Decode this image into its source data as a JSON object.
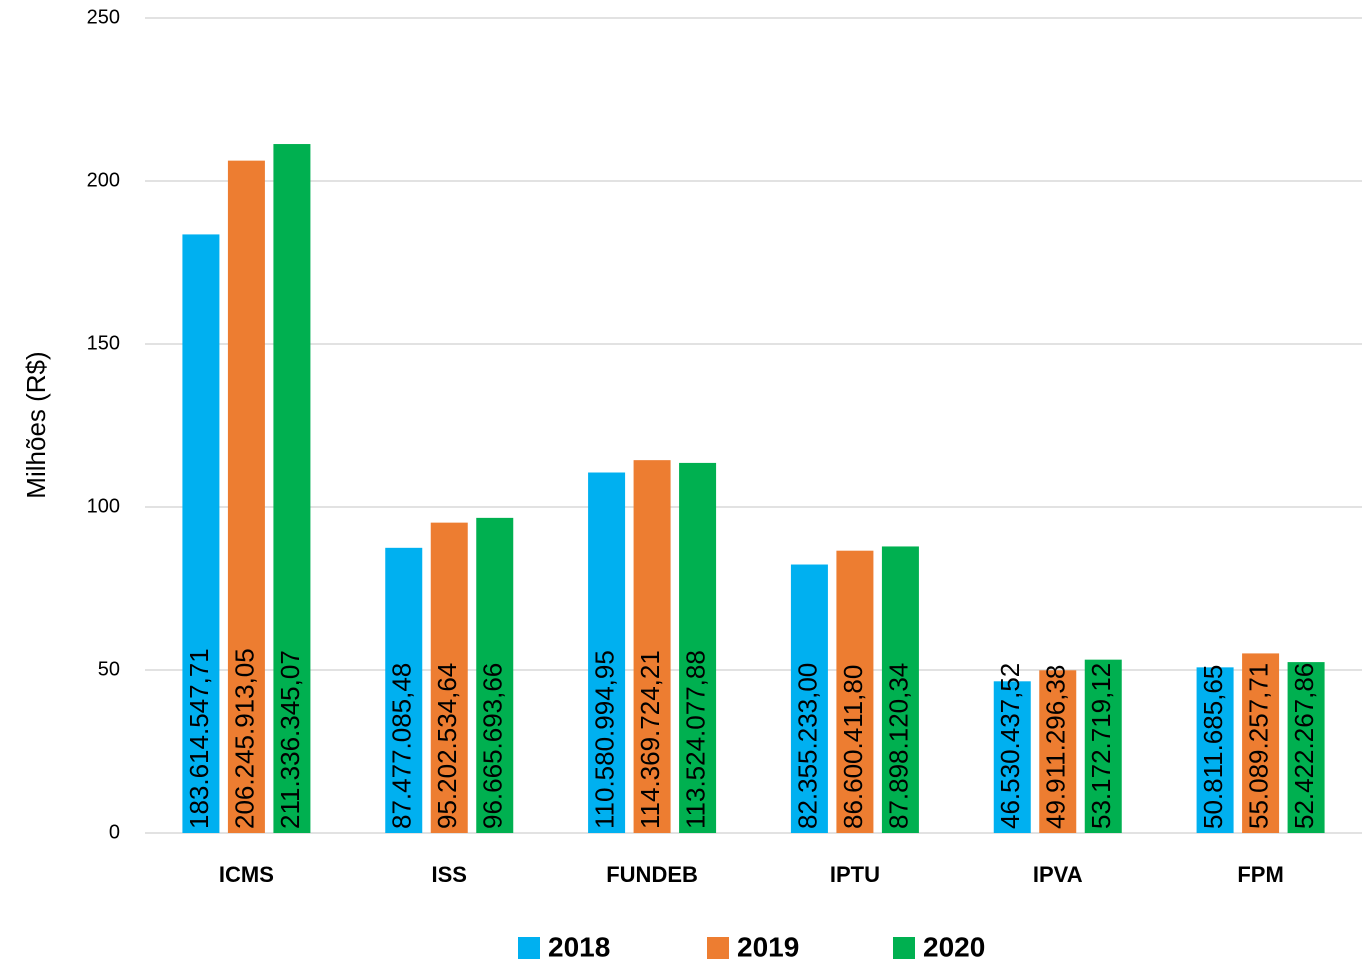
{
  "chart_data": {
    "type": "bar",
    "y_label": "Milhões (R$)",
    "categories": [
      "ICMS",
      "ISS",
      "FUNDEB",
      "IPTU",
      "IPVA",
      "FPM"
    ],
    "series": [
      {
        "name": "2018",
        "color": "#00b0f0",
        "values": [
          183.61454771,
          87.47708548,
          110.58099495,
          82.355233,
          46.53043752,
          50.81168565
        ],
        "value_labels": [
          "183.614.547,71",
          "87.477.085,48",
          "110.580.994,95",
          "82.355.233,00",
          "46.530.437,52",
          "50.811.685,65"
        ]
      },
      {
        "name": "2019",
        "color": "#ed7d31",
        "values": [
          206.24591305,
          95.20253464,
          114.36972421,
          86.6004118,
          49.91129638,
          55.08925771
        ],
        "value_labels": [
          "206.245.913,05",
          "95.202.534,64",
          "114.369.724,21",
          "86.600.411,80",
          "49.911.296,38",
          "55.089.257,71"
        ]
      },
      {
        "name": "2020",
        "color": "#00b050",
        "values": [
          211.33634507,
          96.66569366,
          113.52407788,
          87.89812034,
          53.17271912,
          52.42226786
        ],
        "value_labels": [
          "211.336.345,07",
          "96.665.693,66",
          "113.524.077,88",
          "87.898.120,34",
          "53.172.719,12",
          "52.422.267,86"
        ]
      }
    ],
    "ylim": [
      0,
      250
    ],
    "yticks": [
      0,
      50,
      100,
      150,
      200,
      250
    ],
    "grid": true,
    "legend": "bottom"
  }
}
